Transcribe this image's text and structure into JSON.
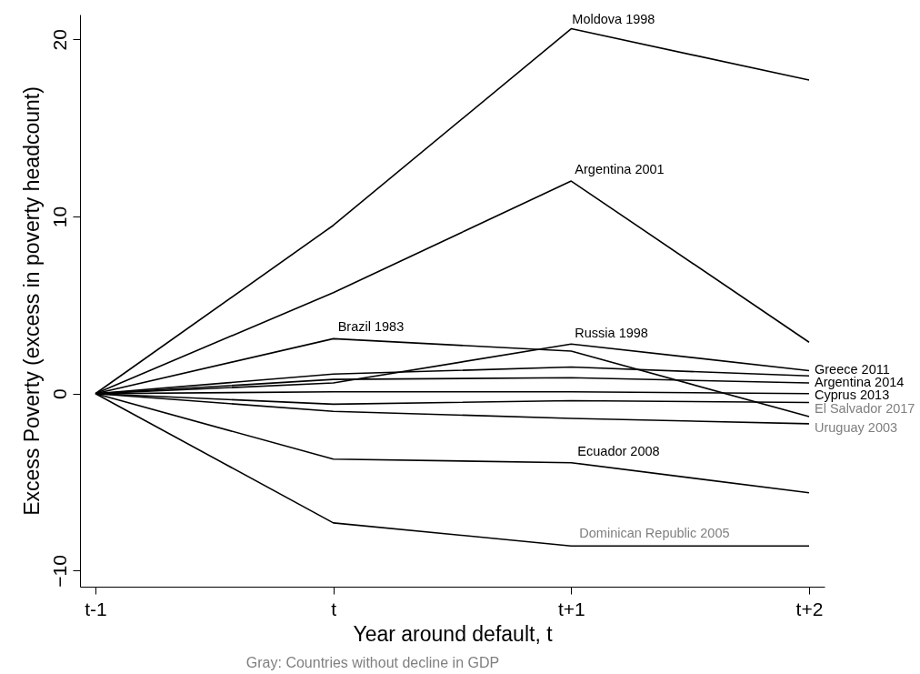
{
  "chart_data": {
    "type": "line",
    "xlabel": "Year around default, t",
    "ylabel": "Excess Poverty (excess in poverty headcount)",
    "categories": [
      "t-1",
      "t",
      "t+1",
      "t+2"
    ],
    "ylim": [
      -10.9,
      21.4
    ],
    "yticks": [
      -10,
      0,
      10,
      20
    ],
    "series": [
      {
        "name": "Moldova 1998",
        "color": "#000000",
        "values": [
          0,
          9.5,
          20.6,
          17.7
        ]
      },
      {
        "name": "Argentina 2001",
        "color": "#000000",
        "values": [
          0,
          5.7,
          12.0,
          2.9
        ]
      },
      {
        "name": "Brazil 1983",
        "color": "#000000",
        "values": [
          0,
          3.1,
          2.4,
          -1.3
        ]
      },
      {
        "name": "Russia 1998",
        "color": "#000000",
        "values": [
          0,
          0.6,
          2.8,
          1.3
        ]
      },
      {
        "name": "Greece 2011",
        "color": "#000000",
        "values": [
          0,
          1.1,
          1.5,
          1.0
        ]
      },
      {
        "name": "Argentina 2014",
        "color": "#000000",
        "values": [
          0,
          0.8,
          0.9,
          0.6
        ]
      },
      {
        "name": "Cyprus 2013",
        "color": "#000000",
        "values": [
          0,
          0.1,
          0.1,
          0.0
        ]
      },
      {
        "name": "El Salvador 2017",
        "color": "#000000",
        "values": [
          0,
          -0.6,
          -0.4,
          -0.5
        ]
      },
      {
        "name": "Uruguay 2003",
        "color": "#000000",
        "values": [
          0,
          -1.0,
          -1.4,
          -1.7
        ]
      },
      {
        "name": "Ecuador 2008",
        "color": "#000000",
        "values": [
          0,
          -3.7,
          -3.9,
          -5.6
        ]
      },
      {
        "name": "Dominican Republic 2005",
        "color": "#000000",
        "values": [
          0,
          -7.3,
          -8.6,
          -8.6
        ]
      }
    ],
    "annotations": [
      "Gray: Countries without decline in GDP"
    ]
  }
}
